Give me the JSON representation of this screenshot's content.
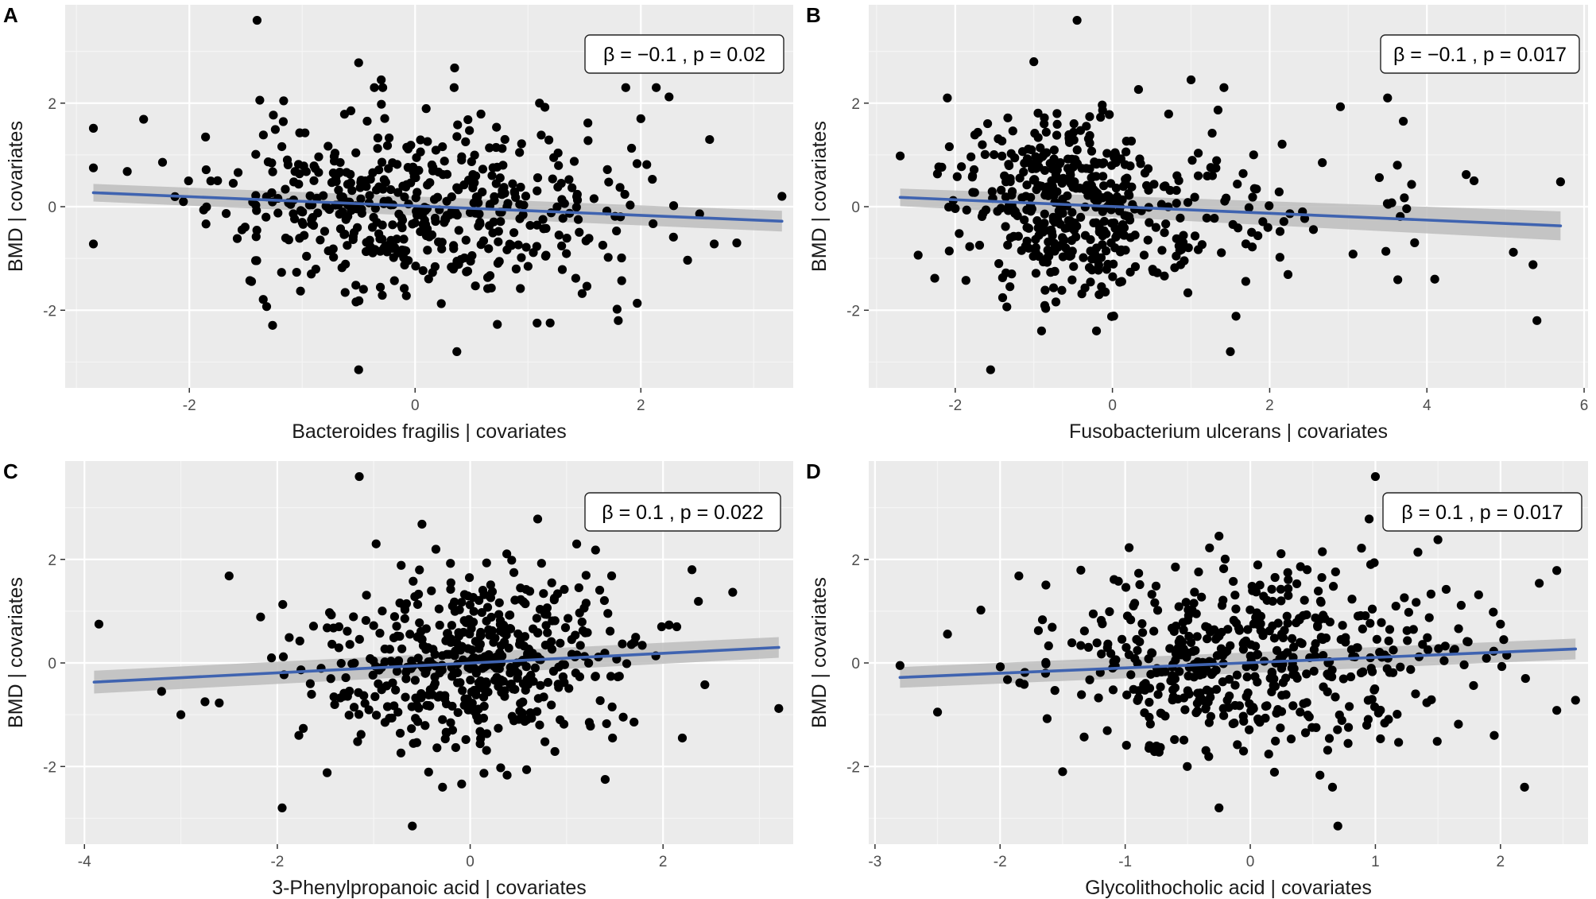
{
  "colors": {
    "panel_background": "#EBEBEB",
    "grid_major": "#FFFFFF",
    "grid_minor": "#F5F5F5",
    "points": "#000000",
    "fit_line": "#3F63B0",
    "confidence_band": "#BDBDBD",
    "axis_text": "#4D4D4D",
    "label_text": "#1A1A1A"
  },
  "chart_data": [
    {
      "panel_letter": "A",
      "type": "scatter",
      "xlabel": "Bacteroides fragilis | covariates",
      "ylabel": "BMD | covariates",
      "annotation": "β = −0.1 , p = 0.02",
      "xlim": [
        -3.1,
        3.35
      ],
      "ylim": [
        -3.5,
        3.9
      ],
      "xticks": [
        -2,
        0,
        2
      ],
      "xtick_labels": [
        "-2",
        "0",
        "2"
      ],
      "yticks": [
        -2,
        0,
        2
      ],
      "ytick_labels": [
        "-2",
        "0",
        "2"
      ],
      "fit": {
        "x": [
          -2.85,
          3.25
        ],
        "y": [
          0.27,
          -0.28
        ],
        "se": [
          0.17,
          0.2
        ]
      },
      "n_points": 500,
      "x_mean": 0.0,
      "x_sd": 0.9,
      "y_sd": 0.85,
      "seed": 11,
      "highlighted_points": [
        [
          -2.85,
          0.75
        ],
        [
          -2.85,
          -0.72
        ],
        [
          -2.55,
          0.68
        ],
        [
          -1.4,
          3.6
        ],
        [
          -0.5,
          2.78
        ],
        [
          0.35,
          2.68
        ],
        [
          2.25,
          2.12
        ],
        [
          3.25,
          0.2
        ],
        [
          -0.5,
          -3.15
        ],
        [
          0.37,
          -2.8
        ],
        [
          1.8,
          -2.2
        ],
        [
          2.65,
          -0.72
        ],
        [
          2.85,
          -0.7
        ],
        [
          2.0,
          1.7
        ],
        [
          1.15,
          1.92
        ],
        [
          -0.3,
          2.45
        ]
      ]
    },
    {
      "panel_letter": "B",
      "type": "scatter",
      "xlabel": "Fusobacterium ulcerans | covariates",
      "ylabel": "BMD | covariates",
      "annotation": "β = −0.1 , p = 0.017",
      "xlim": [
        -3.1,
        6.05
      ],
      "ylim": [
        -3.5,
        3.9
      ],
      "xticks": [
        -2,
        0,
        2,
        4,
        6
      ],
      "xtick_labels": [
        "-2",
        "0",
        "2",
        "4",
        "6"
      ],
      "yticks": [
        -2,
        0,
        2
      ],
      "ytick_labels": [
        "-2",
        "0",
        "2"
      ],
      "fit": {
        "x": [
          -2.7,
          5.7
        ],
        "y": [
          0.18,
          -0.37
        ],
        "se": [
          0.17,
          0.28
        ]
      },
      "n_points": 500,
      "x_mean": -0.7,
      "x_sd": 0.9,
      "x_skew_tail": true,
      "y_sd": 0.85,
      "seed": 22,
      "highlighted_points": [
        [
          -2.7,
          0.98
        ],
        [
          -2.1,
          2.1
        ],
        [
          -0.45,
          3.6
        ],
        [
          -1.0,
          2.8
        ],
        [
          -1.55,
          -3.15
        ],
        [
          1.5,
          -2.8
        ],
        [
          5.4,
          -2.2
        ],
        [
          5.35,
          -1.12
        ],
        [
          5.7,
          0.48
        ],
        [
          3.7,
          1.65
        ],
        [
          3.5,
          2.1
        ],
        [
          4.6,
          0.5
        ],
        [
          4.5,
          0.62
        ],
        [
          4.1,
          -1.4
        ],
        [
          5.1,
          -0.88
        ],
        [
          2.9,
          1.93
        ],
        [
          1.0,
          2.45
        ]
      ]
    },
    {
      "panel_letter": "C",
      "type": "scatter",
      "xlabel": "3-Phenylpropanoic acid | covariates",
      "ylabel": "BMD | covariates",
      "annotation": "β = 0.1 , p = 0.022",
      "xlim": [
        -4.2,
        3.35
      ],
      "ylim": [
        -3.5,
        3.9
      ],
      "xticks": [
        -4,
        -2,
        0,
        2
      ],
      "xtick_labels": [
        "-4",
        "-2",
        "0",
        "2"
      ],
      "yticks": [
        -2,
        0,
        2
      ],
      "ytick_labels": [
        "-2",
        "0",
        "2"
      ],
      "fit": {
        "x": [
          -3.9,
          3.2
        ],
        "y": [
          -0.37,
          0.3
        ],
        "se": [
          0.22,
          0.2
        ]
      },
      "n_points": 500,
      "x_mean": 0.0,
      "x_sd": 0.85,
      "y_sd": 0.85,
      "seed": 33,
      "highlighted_points": [
        [
          -3.85,
          0.75
        ],
        [
          -3.0,
          -1.0
        ],
        [
          -3.2,
          -0.55
        ],
        [
          -2.75,
          -0.75
        ],
        [
          -2.5,
          1.68
        ],
        [
          -1.15,
          3.6
        ],
        [
          -0.6,
          -3.15
        ],
        [
          -1.95,
          -2.8
        ],
        [
          3.2,
          -0.88
        ],
        [
          2.3,
          1.8
        ],
        [
          1.3,
          2.18
        ],
        [
          0.7,
          2.78
        ],
        [
          -0.5,
          2.68
        ],
        [
          2.2,
          -1.45
        ],
        [
          1.4,
          -2.25
        ]
      ]
    },
    {
      "panel_letter": "D",
      "type": "scatter",
      "xlabel": "Glycolithocholic acid | covariates",
      "ylabel": "BMD | covariates",
      "annotation": "β = 0.1 , p = 0.017",
      "xlim": [
        -3.05,
        2.7
      ],
      "ylim": [
        -3.5,
        3.9
      ],
      "xticks": [
        -3,
        -2,
        -1,
        0,
        1,
        2
      ],
      "xtick_labels": [
        "-3",
        "-2",
        "-1",
        "0",
        "1",
        "2"
      ],
      "yticks": [
        -2,
        0,
        2
      ],
      "ytick_labels": [
        "-2",
        "0",
        "2"
      ],
      "fit": {
        "x": [
          -2.8,
          2.6
        ],
        "y": [
          -0.28,
          0.27
        ],
        "se": [
          0.2,
          0.2
        ]
      },
      "n_points": 500,
      "x_mean": 0.0,
      "x_sd": 0.85,
      "y_sd": 0.85,
      "seed": 44,
      "highlighted_points": [
        [
          -2.8,
          -0.05
        ],
        [
          -2.5,
          -0.95
        ],
        [
          -1.5,
          -2.1
        ],
        [
          -0.25,
          -2.8
        ],
        [
          0.7,
          -3.15
        ],
        [
          1.0,
          3.6
        ],
        [
          0.95,
          2.78
        ],
        [
          -0.25,
          2.45
        ],
        [
          2.6,
          -0.72
        ],
        [
          2.2,
          -0.3
        ],
        [
          2.0,
          0.75
        ],
        [
          1.95,
          -1.4
        ],
        [
          2.05,
          0.15
        ],
        [
          1.5,
          2.38
        ],
        [
          -1.85,
          1.68
        ]
      ]
    }
  ]
}
